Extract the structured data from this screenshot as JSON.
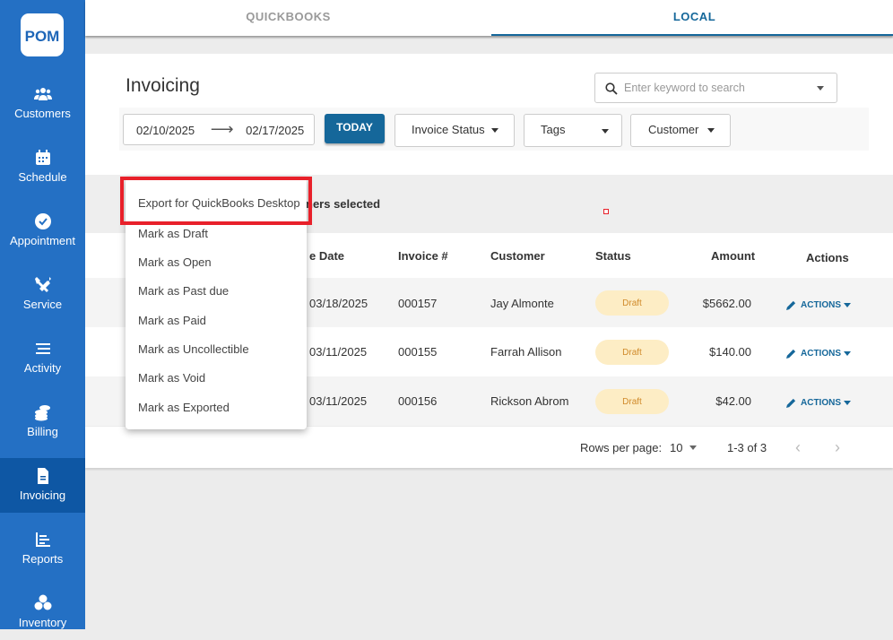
{
  "sidebar": {
    "logo": "POM",
    "items": [
      {
        "label": "Customers",
        "icon": "users-icon"
      },
      {
        "label": "Schedule",
        "icon": "calendar-icon"
      },
      {
        "label": "Appointment",
        "icon": "check-circle-icon"
      },
      {
        "label": "Service",
        "icon": "tools-icon"
      },
      {
        "label": "Activity",
        "icon": "list-icon"
      },
      {
        "label": "Billing",
        "icon": "coins-icon"
      },
      {
        "label": "Invoicing",
        "icon": "document-icon",
        "active": true
      },
      {
        "label": "Reports",
        "icon": "chart-icon"
      },
      {
        "label": "Inventory",
        "icon": "boxes-icon"
      }
    ]
  },
  "tabs": [
    {
      "label": "QUICKBOOKS"
    },
    {
      "label": "LOCAL",
      "active": true
    }
  ],
  "page": {
    "title": "Invoicing",
    "search_placeholder": "Enter keyword to search",
    "date_from": "02/10/2025",
    "date_to": "02/17/2025",
    "today": "TODAY",
    "filters": [
      "Invoice Status",
      "Tags",
      "Customer"
    ]
  },
  "selection": {
    "text": "ners selected"
  },
  "table": {
    "headers": [
      "e Date",
      "Invoice #",
      "Customer",
      "Status",
      "Amount",
      "Actions"
    ],
    "rows": [
      {
        "date": "03/18/2025",
        "invoice": "000157",
        "customer": "Jay Almonte",
        "status": "Draft",
        "amount": "$5662.00",
        "action": "ACTIONS"
      },
      {
        "date": "03/11/2025",
        "invoice": "000155",
        "customer": "Farrah Allison",
        "status": "Draft",
        "amount": "$140.00",
        "action": "ACTIONS"
      },
      {
        "date": "03/11/2025",
        "invoice": "000156",
        "customer": "Rickson Abrom",
        "status": "Draft",
        "amount": "$42.00",
        "action": "ACTIONS"
      }
    ]
  },
  "pagination": {
    "rows_label": "Rows per page:",
    "rows_value": "10",
    "range": "1-3 of 3"
  },
  "menu": [
    "Export for QuickBooks Desktop",
    "Mark as Draft",
    "Mark as Open",
    "Mark as Past due",
    "Mark as Paid",
    "Mark as Uncollectible",
    "Mark as Void",
    "Mark as Exported"
  ],
  "colors": {
    "sidebar": "#2470c4",
    "sidebar_active": "#0e57a4",
    "accent": "#15679a",
    "highlight": "#e8202a",
    "badge_bg": "#fdedc5",
    "badge_text": "#d08a2a"
  }
}
